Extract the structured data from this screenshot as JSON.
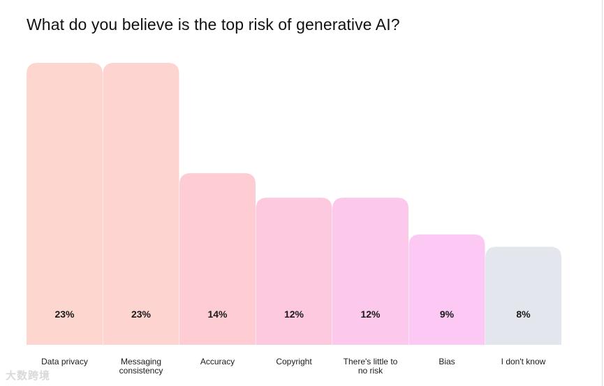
{
  "chart_data": {
    "type": "bar",
    "title": "What do you believe is the top risk of generative AI?",
    "categories": [
      "Data privacy",
      "Messaging consistency",
      "Accuracy",
      "Copyright",
      "There's little to no risk",
      "Bias",
      "I don't know"
    ],
    "category_lines": [
      [
        "Data privacy"
      ],
      [
        "Messaging",
        "consistency"
      ],
      [
        "Accuracy"
      ],
      [
        "Copyright"
      ],
      [
        "There's little to",
        "no risk"
      ],
      [
        "Bias"
      ],
      [
        "I don't know"
      ]
    ],
    "values": [
      23,
      23,
      14,
      12,
      12,
      9,
      8
    ],
    "value_labels": [
      "23%",
      "23%",
      "14%",
      "12%",
      "12%",
      "9%",
      "8%"
    ],
    "colors": [
      "#fdd7cf",
      "#fdd4cf",
      "#fdcdd3",
      "#fcc9df",
      "#fcc8eb",
      "#fcc8f4",
      "#e4e6ee"
    ],
    "ylim": [
      0,
      23
    ],
    "grid": false,
    "legend": "none",
    "xlabel": "",
    "ylabel": ""
  },
  "watermark": "大数跨境"
}
